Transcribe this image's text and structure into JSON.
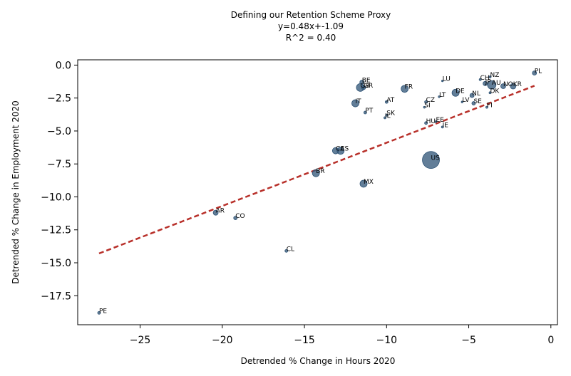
{
  "chart_data": {
    "type": "scatter",
    "title": [
      "Defining our Retention Scheme Proxy",
      "y=0.48x+-1.09",
      "R^2 =  0.40"
    ],
    "xlabel": "Detrended % Change in Hours 2020",
    "ylabel": "Detrended % Change in Employment 2020",
    "xlim": [
      -28.8,
      0.4
    ],
    "ylim": [
      -19.7,
      0.4
    ],
    "xticks": [
      -25,
      -20,
      -15,
      -10,
      -5,
      0
    ],
    "xtick_labels": [
      "−25",
      "−20",
      "−15",
      "−10",
      "−5",
      "0"
    ],
    "yticks": [
      0.0,
      -2.5,
      -5.0,
      -7.5,
      -10.0,
      -12.5,
      -15.0,
      -17.5
    ],
    "ytick_labels": [
      "0.0",
      "−2.5",
      "−5.0",
      "−7.5",
      "−10.0",
      "−12.5",
      "−15.0",
      "−17.5"
    ],
    "grid": false,
    "marker_color": "#2e5375",
    "fit_line_color": "#b8302a",
    "fit": {
      "slope": 0.48,
      "intercept": -1.09,
      "x_range": [
        -27.5,
        -1.0
      ]
    },
    "points": [
      {
        "label": "PL",
        "x": -1.0,
        "y": -0.6,
        "size": 3
      },
      {
        "label": "KR",
        "x": -2.3,
        "y": -1.6,
        "size": 4
      },
      {
        "label": "NO",
        "x": -2.9,
        "y": -1.6,
        "size": 3.5
      },
      {
        "label": "AU",
        "x": -3.6,
        "y": -1.5,
        "size": 6
      },
      {
        "label": "NZ",
        "x": -3.7,
        "y": -0.9,
        "size": 1.5
      },
      {
        "label": "JP",
        "x": -4.0,
        "y": -1.4,
        "size": 3
      },
      {
        "label": "CH",
        "x": -4.3,
        "y": -1.1,
        "size": 1.5
      },
      {
        "label": "DK",
        "x": -3.7,
        "y": -2.1,
        "size": 1.5
      },
      {
        "label": "NL",
        "x": -4.8,
        "y": -2.3,
        "size": 3
      },
      {
        "label": "FI",
        "x": -3.9,
        "y": -3.2,
        "size": 1.5
      },
      {
        "label": "SE",
        "x": -4.7,
        "y": -2.9,
        "size": 2.5
      },
      {
        "label": "LV",
        "x": -5.4,
        "y": -2.8,
        "size": 1.3
      },
      {
        "label": "DE",
        "x": -5.8,
        "y": -2.1,
        "size": 5
      },
      {
        "label": "LU",
        "x": -6.6,
        "y": -1.2,
        "size": 1.2
      },
      {
        "label": "LT",
        "x": -6.8,
        "y": -2.4,
        "size": 1.3
      },
      {
        "label": "CZ",
        "x": -7.6,
        "y": -2.8,
        "size": 2
      },
      {
        "label": "SI",
        "x": -7.7,
        "y": -3.2,
        "size": 1.3
      },
      {
        "label": "EE",
        "x": -7.0,
        "y": -4.3,
        "size": 1.3
      },
      {
        "label": "HU",
        "x": -7.6,
        "y": -4.4,
        "size": 2
      },
      {
        "label": "IE",
        "x": -6.6,
        "y": -4.7,
        "size": 1.5
      },
      {
        "label": "US",
        "x": -7.3,
        "y": -7.2,
        "size": 12
      },
      {
        "label": "FR",
        "x": -8.9,
        "y": -1.8,
        "size": 5
      },
      {
        "label": "AT",
        "x": -10.0,
        "y": -2.8,
        "size": 2
      },
      {
        "label": "SK",
        "x": -10.0,
        "y": -3.8,
        "size": 1.5
      },
      {
        "label": "IL",
        "x": -10.1,
        "y": -4.0,
        "size": 1.5
      },
      {
        "label": "PT",
        "x": -11.3,
        "y": -3.6,
        "size": 2
      },
      {
        "label": "BE",
        "x": -11.5,
        "y": -1.3,
        "size": 3
      },
      {
        "label": "GB",
        "x": -11.6,
        "y": -1.7,
        "size": 5.5
      },
      {
        "label": "GR",
        "x": -11.4,
        "y": -1.7,
        "size": 3
      },
      {
        "label": "IT",
        "x": -11.9,
        "y": -2.9,
        "size": 5
      },
      {
        "label": "CA",
        "x": -13.1,
        "y": -6.5,
        "size": 4.5
      },
      {
        "label": "ES",
        "x": -12.8,
        "y": -6.5,
        "size": 5
      },
      {
        "label": "BR",
        "x": -14.3,
        "y": -8.2,
        "size": 5
      },
      {
        "label": "MX",
        "x": -11.4,
        "y": -9.0,
        "size": 5
      },
      {
        "label": "AR",
        "x": -20.4,
        "y": -11.2,
        "size": 3.5
      },
      {
        "label": "CO",
        "x": -19.2,
        "y": -11.6,
        "size": 2.5
      },
      {
        "label": "CL",
        "x": -16.1,
        "y": -14.1,
        "size": 2
      },
      {
        "label": "PE",
        "x": -27.5,
        "y": -18.8,
        "size": 2
      }
    ]
  }
}
